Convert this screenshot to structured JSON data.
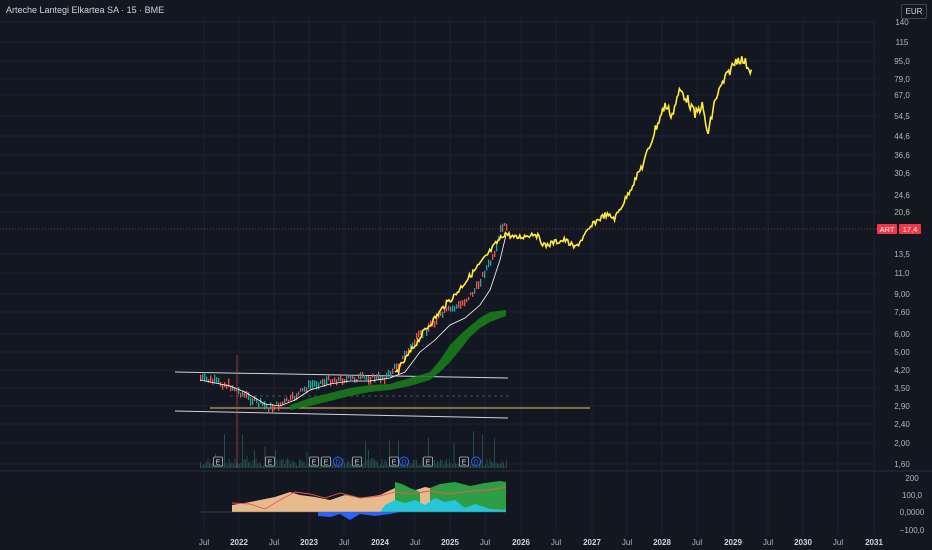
{
  "header": {
    "title": "Arteche Lantegi Elkartea SA · 15 · BME",
    "currency": "EUR"
  },
  "price_scale": [
    "140",
    "115",
    "95,0",
    "79,0",
    "67,0",
    "54,5",
    "44,6",
    "36,6",
    "30,6",
    "24,6",
    "20,6",
    "13,5",
    "11,0",
    "9,00",
    "7,60",
    "6,00",
    "5,00",
    "4,20",
    "3,50",
    "2,90",
    "2,40",
    "2,00",
    "1,60"
  ],
  "indicator_scale": [
    "200",
    "100,0",
    "0,0000",
    "−100,0"
  ],
  "time_axis": [
    {
      "label": "Jul",
      "year": false
    },
    {
      "label": "2022",
      "year": true
    },
    {
      "label": "Jul",
      "year": false
    },
    {
      "label": "2023",
      "year": true
    },
    {
      "label": "Jul",
      "year": false
    },
    {
      "label": "2024",
      "year": true
    },
    {
      "label": "Jul",
      "year": false
    },
    {
      "label": "2025",
      "year": true
    },
    {
      "label": "Jul",
      "year": false
    },
    {
      "label": "2026",
      "year": true
    },
    {
      "label": "Jul",
      "year": false
    },
    {
      "label": "2027",
      "year": true
    },
    {
      "label": "Jul",
      "year": false
    },
    {
      "label": "2028",
      "year": true
    },
    {
      "label": "Jul",
      "year": false
    },
    {
      "label": "2029",
      "year": true
    },
    {
      "label": "Jul",
      "year": false
    },
    {
      "label": "2030",
      "year": true
    },
    {
      "label": "Jul",
      "year": false
    },
    {
      "label": "2031",
      "year": true
    }
  ],
  "price_tag": {
    "symbol": "ART",
    "value": "17,4"
  },
  "events": [
    {
      "type": "E"
    },
    {
      "type": "E"
    },
    {
      "type": "E"
    },
    {
      "type": "E"
    },
    {
      "type": "D"
    },
    {
      "type": "E"
    },
    {
      "type": "E"
    },
    {
      "type": "D"
    },
    {
      "type": "E"
    },
    {
      "type": "E"
    },
    {
      "type": "D"
    }
  ],
  "colors": {
    "background": "#131722",
    "projection": "#ffeb3b",
    "cloud": "#1b7a1b",
    "price_line": "#ef5350",
    "tag": "#f23645",
    "support": "#f0c36b",
    "channel": "#d1d4dc"
  }
}
